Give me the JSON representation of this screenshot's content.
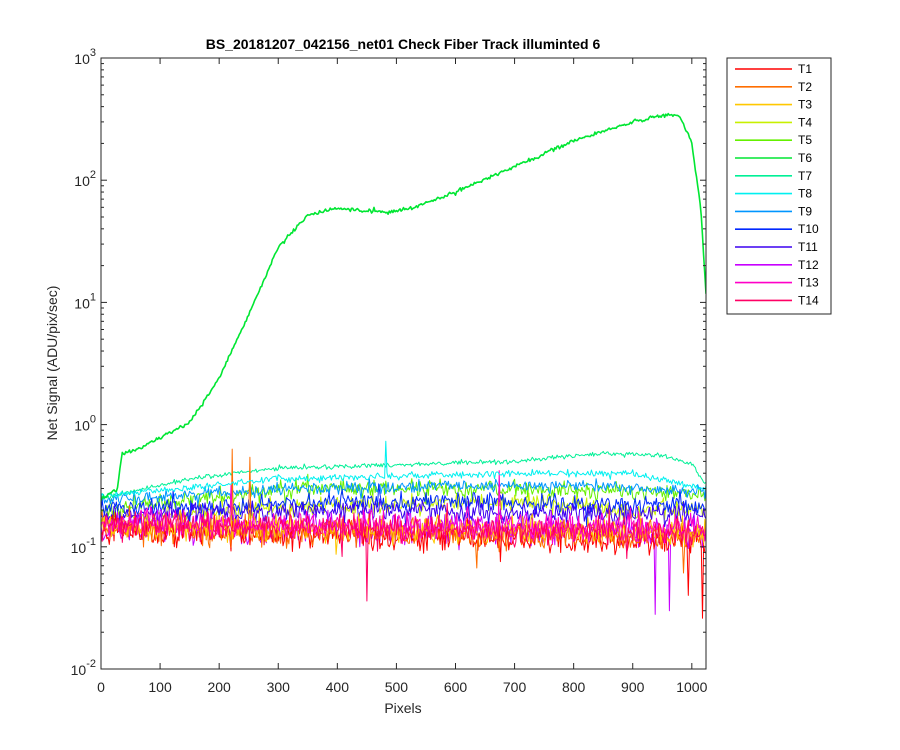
{
  "chart_data": {
    "type": "line",
    "title": "BS_20181207_042156_net01    Check Fiber      Track illuminted 6",
    "xlabel": "Pixels",
    "ylabel": "Net Signal (ADU/pix/sec)",
    "xlim": [
      0,
      1024
    ],
    "ylim": [
      0.01,
      1000
    ],
    "yscale": "log",
    "xticks": [
      0,
      100,
      200,
      300,
      400,
      500,
      600,
      700,
      800,
      900,
      1000
    ],
    "yticks": [
      {
        "base": "10",
        "exp": "-2",
        "value": 0.01
      },
      {
        "base": "10",
        "exp": "-1",
        "value": 0.1
      },
      {
        "base": "10",
        "exp": "0",
        "value": 1
      },
      {
        "base": "10",
        "exp": "1",
        "value": 10
      },
      {
        "base": "10",
        "exp": "2",
        "value": 100
      },
      {
        "base": "10",
        "exp": "3",
        "value": 1000
      }
    ],
    "grid": false,
    "legend_position": "outside-right-top",
    "series": [
      {
        "name": "T1",
        "color": "#FF0000",
        "baseline": [
          [
            0,
            0.14
          ],
          [
            1024,
            0.11
          ]
        ],
        "noise": 0.55,
        "spikes": [
          [
            1018,
            0.026
          ],
          [
            995,
            0.04
          ]
        ]
      },
      {
        "name": "T2",
        "color": "#FF6E00",
        "baseline": [
          [
            0,
            0.14
          ],
          [
            1024,
            0.12
          ]
        ],
        "noise": 0.5,
        "spikes": [
          [
            222,
            0.63
          ],
          [
            252,
            0.54
          ]
        ]
      },
      {
        "name": "T3",
        "color": "#FFC800",
        "baseline": [
          [
            0,
            0.15
          ],
          [
            1024,
            0.13
          ]
        ],
        "noise": 0.45,
        "spikes": []
      },
      {
        "name": "T4",
        "color": "#C8F000",
        "baseline": [
          [
            0,
            0.17
          ],
          [
            400,
            0.22
          ],
          [
            700,
            0.24
          ],
          [
            900,
            0.2
          ],
          [
            1024,
            0.2
          ]
        ],
        "noise": 0.35,
        "spikes": []
      },
      {
        "name": "T5",
        "color": "#64F000",
        "baseline": [
          [
            0,
            0.2
          ],
          [
            300,
            0.3
          ],
          [
            700,
            0.3
          ],
          [
            1024,
            0.27
          ]
        ],
        "noise": 0.3,
        "spikes": []
      },
      {
        "name": "T6",
        "color": "#00E632",
        "baseline": [
          [
            0,
            0.24
          ],
          [
            28,
            0.3
          ],
          [
            35,
            0.58
          ],
          [
            60,
            0.62
          ],
          [
            100,
            0.78
          ],
          [
            150,
            1.05
          ],
          [
            200,
            2.4
          ],
          [
            250,
            8
          ],
          [
            300,
            28
          ],
          [
            350,
            52
          ],
          [
            400,
            59
          ],
          [
            450,
            56
          ],
          [
            490,
            55
          ],
          [
            530,
            60
          ],
          [
            600,
            80
          ],
          [
            700,
            130
          ],
          [
            800,
            210
          ],
          [
            900,
            300
          ],
          [
            960,
            345
          ],
          [
            980,
            330
          ],
          [
            1000,
            200
          ],
          [
            1015,
            60
          ],
          [
            1024,
            12
          ]
        ],
        "noise": 0.06,
        "spikes": []
      },
      {
        "name": "T7",
        "color": "#00F096",
        "baseline": [
          [
            0,
            0.25
          ],
          [
            150,
            0.36
          ],
          [
            300,
            0.44
          ],
          [
            500,
            0.47
          ],
          [
            700,
            0.5
          ],
          [
            850,
            0.58
          ],
          [
            950,
            0.56
          ],
          [
            1000,
            0.48
          ],
          [
            1024,
            0.32
          ]
        ],
        "noise": 0.08,
        "spikes": []
      },
      {
        "name": "T8",
        "color": "#00F0F0",
        "baseline": [
          [
            0,
            0.26
          ],
          [
            300,
            0.36
          ],
          [
            700,
            0.4
          ],
          [
            900,
            0.4
          ],
          [
            1024,
            0.3
          ]
        ],
        "noise": 0.12,
        "spikes": [
          [
            482,
            0.73
          ]
        ]
      },
      {
        "name": "T9",
        "color": "#0096FF",
        "baseline": [
          [
            0,
            0.24
          ],
          [
            300,
            0.3
          ],
          [
            800,
            0.32
          ],
          [
            1024,
            0.28
          ]
        ],
        "noise": 0.2,
        "spikes": []
      },
      {
        "name": "T10",
        "color": "#0028FF",
        "baseline": [
          [
            0,
            0.2
          ],
          [
            500,
            0.24
          ],
          [
            1024,
            0.21
          ]
        ],
        "noise": 0.3,
        "spikes": []
      },
      {
        "name": "T11",
        "color": "#3C00F0",
        "baseline": [
          [
            0,
            0.18
          ],
          [
            500,
            0.2
          ],
          [
            1024,
            0.18
          ]
        ],
        "noise": 0.35,
        "spikes": []
      },
      {
        "name": "T12",
        "color": "#C800FF",
        "baseline": [
          [
            0,
            0.15
          ],
          [
            1024,
            0.13
          ]
        ],
        "noise": 0.55,
        "spikes": [
          [
            938,
            0.028
          ],
          [
            962,
            0.03
          ]
        ]
      },
      {
        "name": "T13",
        "color": "#FF00C8",
        "baseline": [
          [
            0,
            0.16
          ],
          [
            500,
            0.15
          ],
          [
            1024,
            0.14
          ]
        ],
        "noise": 0.45,
        "spikes": [
          [
            675,
            0.42
          ]
        ]
      },
      {
        "name": "T14",
        "color": "#FF0064",
        "baseline": [
          [
            0,
            0.15
          ],
          [
            500,
            0.14
          ],
          [
            1024,
            0.13
          ]
        ],
        "noise": 0.45,
        "spikes": [
          [
            450,
            0.036
          ]
        ]
      }
    ]
  }
}
